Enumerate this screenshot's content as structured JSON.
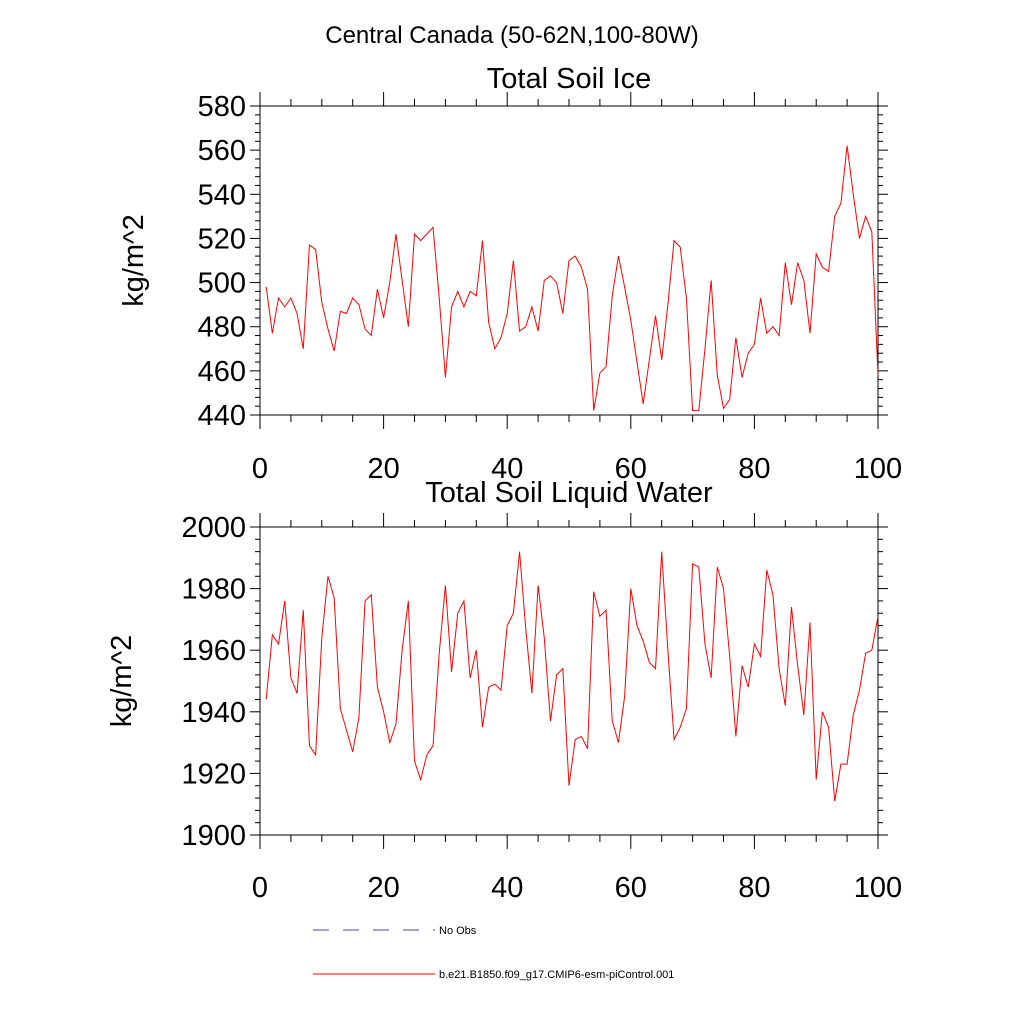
{
  "figure_title": "Central Canada (50-62N,100-80W)",
  "legend": [
    {
      "label": "No Obs",
      "color": "#4a4aa0",
      "style": "dashed"
    },
    {
      "label": "b.e21.B1850.f09_g17.CMIP6-esm-piControl.001",
      "color": "#ff0000",
      "style": "solid"
    }
  ],
  "chart_data": [
    {
      "type": "line",
      "title": "Total Soil Ice",
      "xlabel": "",
      "ylabel": "kg/m^2",
      "xlim": [
        0,
        100
      ],
      "ylim": [
        440,
        580
      ],
      "xticks": [
        0,
        20,
        40,
        60,
        80,
        100
      ],
      "yticks": [
        440,
        460,
        480,
        500,
        520,
        540,
        560,
        580
      ],
      "grid": false,
      "series": [
        {
          "color": "#ff0000",
          "x": [
            1,
            2,
            3,
            4,
            5,
            6,
            7,
            8,
            9,
            10,
            11,
            12,
            13,
            14,
            15,
            16,
            17,
            18,
            19,
            20,
            21,
            22,
            23,
            24,
            25,
            26,
            27,
            28,
            29,
            30,
            31,
            32,
            33,
            34,
            35,
            36,
            37,
            38,
            39,
            40,
            41,
            42,
            43,
            44,
            45,
            46,
            47,
            48,
            49,
            50,
            51,
            52,
            53,
            54,
            55,
            56,
            57,
            58,
            59,
            60,
            61,
            62,
            63,
            64,
            65,
            66,
            67,
            68,
            69,
            70,
            71,
            72,
            73,
            74,
            75,
            76,
            77,
            78,
            79,
            80,
            81,
            82,
            83,
            84,
            85,
            86,
            87,
            88,
            89,
            90,
            91,
            92,
            93,
            94,
            95,
            96,
            97,
            98,
            99,
            100
          ],
          "values": [
            498,
            477,
            493,
            489,
            493,
            486,
            470,
            517,
            515,
            491,
            479,
            469,
            487,
            486,
            493,
            490,
            479,
            476,
            497,
            484,
            500,
            522,
            501,
            480,
            522,
            519,
            522,
            525,
            493,
            457,
            489,
            496,
            489,
            496,
            494,
            519,
            482,
            470,
            475,
            486,
            510,
            478,
            480,
            489,
            478,
            501,
            503,
            500,
            486,
            510,
            512,
            507,
            497,
            442,
            459,
            462,
            494,
            512,
            498,
            483,
            464,
            445,
            465,
            485,
            465,
            490,
            519,
            516,
            493,
            442,
            442,
            470,
            501,
            458,
            443,
            447,
            475,
            457,
            468,
            472,
            493,
            477,
            480,
            476,
            509,
            490,
            509,
            501,
            477,
            513,
            507,
            505,
            530,
            536,
            562,
            540,
            520,
            530,
            523,
            458
          ]
        }
      ]
    },
    {
      "type": "line",
      "title": "Total Soil Liquid Water",
      "xlabel": "",
      "ylabel": "kg/m^2",
      "xlim": [
        0,
        100
      ],
      "ylim": [
        1900,
        2000
      ],
      "xticks": [
        0,
        20,
        40,
        60,
        80,
        100
      ],
      "yticks": [
        1900,
        1920,
        1940,
        1960,
        1980,
        2000
      ],
      "grid": false,
      "series": [
        {
          "color": "#ff0000",
          "x": [
            1,
            2,
            3,
            4,
            5,
            6,
            7,
            8,
            9,
            10,
            11,
            12,
            13,
            14,
            15,
            16,
            17,
            18,
            19,
            20,
            21,
            22,
            23,
            24,
            25,
            26,
            27,
            28,
            29,
            30,
            31,
            32,
            33,
            34,
            35,
            36,
            37,
            38,
            39,
            40,
            41,
            42,
            43,
            44,
            45,
            46,
            47,
            48,
            49,
            50,
            51,
            52,
            53,
            54,
            55,
            56,
            57,
            58,
            59,
            60,
            61,
            62,
            63,
            64,
            65,
            66,
            67,
            68,
            69,
            70,
            71,
            72,
            73,
            74,
            75,
            76,
            77,
            78,
            79,
            80,
            81,
            82,
            83,
            84,
            85,
            86,
            87,
            88,
            89,
            90,
            91,
            92,
            93,
            94,
            95,
            96,
            97,
            98,
            99,
            100
          ],
          "values": [
            1944,
            1965,
            1962,
            1976,
            1951,
            1946,
            1973,
            1929,
            1926,
            1964,
            1984,
            1977,
            1941,
            1934,
            1927,
            1938,
            1976,
            1978,
            1948,
            1940,
            1930,
            1936,
            1960,
            1976,
            1924,
            1918,
            1926,
            1929,
            1959,
            1981,
            1953,
            1972,
            1976,
            1951,
            1960,
            1935,
            1948,
            1949,
            1947,
            1968,
            1972,
            1992,
            1967,
            1946,
            1981,
            1964,
            1937,
            1952,
            1954,
            1916,
            1931,
            1932,
            1928,
            1979,
            1971,
            1973,
            1937,
            1930,
            1945,
            1980,
            1968,
            1963,
            1956,
            1954,
            1992,
            1960,
            1931,
            1935,
            1941,
            1988,
            1987,
            1962,
            1951,
            1987,
            1980,
            1958,
            1932,
            1955,
            1948,
            1962,
            1958,
            1986,
            1978,
            1954,
            1942,
            1974,
            1955,
            1939,
            1969,
            1918,
            1940,
            1935,
            1911,
            1923,
            1923,
            1939,
            1947,
            1959,
            1960,
            1971
          ]
        }
      ]
    }
  ]
}
